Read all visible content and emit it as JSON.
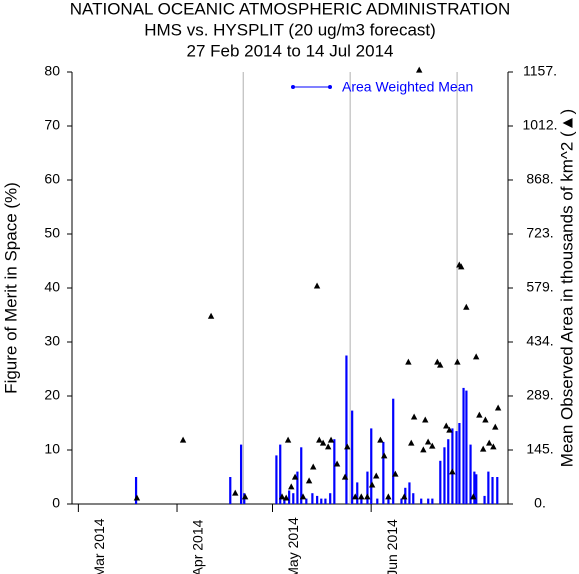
{
  "chart_data": {
    "type": "bar",
    "title": "NATIONAL OCEANIC ATMOSPHERIC ADMINISTRATION",
    "subtitle": "HMS vs. HYSPLIT (20 ug/m3 forecast)",
    "date_range": "27 Feb 2014 to 14 Jul 2014",
    "ylabel": "Figure of Merit in Space (%)",
    "y2label": "Mean Observed Area in thousands of km^2 (▲)",
    "xlim": [
      0,
      137
    ],
    "xticks": [
      {
        "value": 2,
        "label": "Mar 2014"
      },
      {
        "value": 33,
        "label": "Apr 2014"
      },
      {
        "value": 63,
        "label": "May 2014"
      },
      {
        "value": 94,
        "label": "Jun 2014"
      }
    ],
    "xgrid": [
      53.8,
      87.4,
      121
    ],
    "ylim": [
      0,
      80
    ],
    "yticks": [
      0,
      10,
      20,
      30,
      40,
      50,
      60,
      70,
      80
    ],
    "y2lim": [
      0,
      1157
    ],
    "y2ticks": [
      {
        "value": 0,
        "label": "0."
      },
      {
        "value": 144.6,
        "label": "145."
      },
      {
        "value": 289.3,
        "label": "289."
      },
      {
        "value": 433.9,
        "label": "434."
      },
      {
        "value": 578.5,
        "label": "579."
      },
      {
        "value": 723.1,
        "label": "723."
      },
      {
        "value": 867.8,
        "label": "868."
      },
      {
        "value": 1012.4,
        "label": "1012."
      },
      {
        "value": 1157,
        "label": "1157."
      }
    ],
    "legend": "top-right",
    "series": [
      {
        "name": "Area Weighted Mean",
        "type": "bar",
        "color": "#0000ff",
        "x": [
          20.1,
          49.7,
          53.1,
          54.1,
          64.2,
          65.4,
          66.7,
          68.2,
          69.5,
          70.8,
          72,
          73.6,
          75.5,
          77,
          78.3,
          79.6,
          81.1,
          82.4,
          86.2,
          88,
          89.6,
          90.9,
          92.8,
          94,
          95.9,
          97.8,
          99.4,
          100.9,
          103.5,
          104.7,
          106,
          107.2,
          109.7,
          111.9,
          113.2,
          115.7,
          117,
          118.2,
          119.5,
          120.8,
          121.7,
          123,
          123.9,
          125.2,
          126.4,
          127,
          129.6,
          130.8,
          132.1,
          133.6
        ],
        "values": [
          5,
          5,
          11,
          2,
          9,
          11,
          1,
          2.5,
          2,
          6,
          10.5,
          1,
          2,
          1.5,
          1,
          1,
          2,
          12,
          27.5,
          17.3,
          4,
          1,
          6,
          14,
          1,
          11.5,
          1.5,
          19.5,
          1,
          3,
          4,
          2,
          1,
          1,
          1,
          8,
          10.5,
          12,
          14,
          13.5,
          15,
          21.5,
          21,
          11,
          6,
          5.5,
          1.5,
          6,
          5,
          5
        ]
      },
      {
        "type": "scatter",
        "marker": "triangle",
        "axis": "y2",
        "color": "#000000",
        "x": [
          20.4,
          34.9,
          43.7,
          51.3,
          54.4,
          66,
          67.3,
          67.9,
          68.9,
          70.1,
          72.6,
          74.5,
          75.8,
          77,
          77.7,
          78.9,
          80.5,
          81.4,
          83.3,
          85.8,
          86.5,
          89,
          90.9,
          92.8,
          94.3,
          95.6,
          96.9,
          98.1,
          99.4,
          101.6,
          104.4,
          105.7,
          106.6,
          107.5,
          109.1,
          110.4,
          111,
          111.9,
          113.2,
          114.8,
          115.7,
          117.6,
          118.6,
          119.5,
          121.1,
          121.7,
          122.3,
          123.9,
          126.1,
          127,
          128,
          129.2,
          129.9,
          131.1,
          132.4,
          133,
          133.9
        ],
        "values": [
          16,
          171,
          503,
          29,
          19,
          19,
          16,
          171,
          46,
          72,
          19,
          62,
          99,
          584,
          171,
          163,
          153,
          171,
          107,
          72,
          153,
          19,
          19,
          19,
          51,
          75,
          171,
          129,
          19,
          80,
          19,
          380,
          163,
          233,
          1162,
          145,
          225,
          166,
          155,
          380,
          372,
          209,
          198,
          86,
          380,
          640,
          635,
          527,
          19,
          394,
          238,
          147,
          225,
          163,
          153,
          206,
          257
        ]
      }
    ]
  }
}
